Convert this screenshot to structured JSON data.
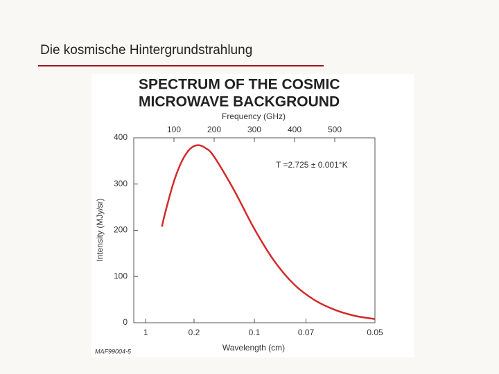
{
  "header": {
    "title": "Die kosmische Hintergrundstrahlung"
  },
  "chart_data": {
    "type": "line",
    "title": [
      "SPECTRUM OF THE COSMIC",
      "MICROWAVE BACKGROUND"
    ],
    "x_label": "Frequency (GHz)",
    "x2_label": "Wavelength (cm)",
    "y_label": "Intensity (MJy/sr)",
    "annotation": "T =2.725 ± 0.001°K",
    "credit": "MAF99004-5",
    "x": [
      70,
      80,
      100,
      120,
      140,
      160,
      180,
      200,
      250,
      300,
      350,
      400,
      450,
      500,
      550,
      600
    ],
    "series": [
      {
        "color": "#d42a2a",
        "values": [
          208,
          244,
          306,
          350,
          376,
          384,
          377,
          359,
          286,
          203,
          133,
          82,
          49,
          28,
          15,
          8
        ]
      }
    ],
    "xlim": [
      0,
      600
    ],
    "xticks": [
      100,
      200,
      300,
      400,
      500
    ],
    "x2ticks": [
      {
        "value": 30,
        "label": "1"
      },
      {
        "value": 150,
        "label": "0.2"
      },
      {
        "value": 300,
        "label": "0.1"
      },
      {
        "value": 428.57,
        "label": "0.07"
      },
      {
        "value": 600,
        "label": "0.05"
      }
    ],
    "ylim": [
      0,
      400
    ],
    "yticks": [
      0,
      100,
      200,
      300,
      400
    ],
    "grid": false
  }
}
